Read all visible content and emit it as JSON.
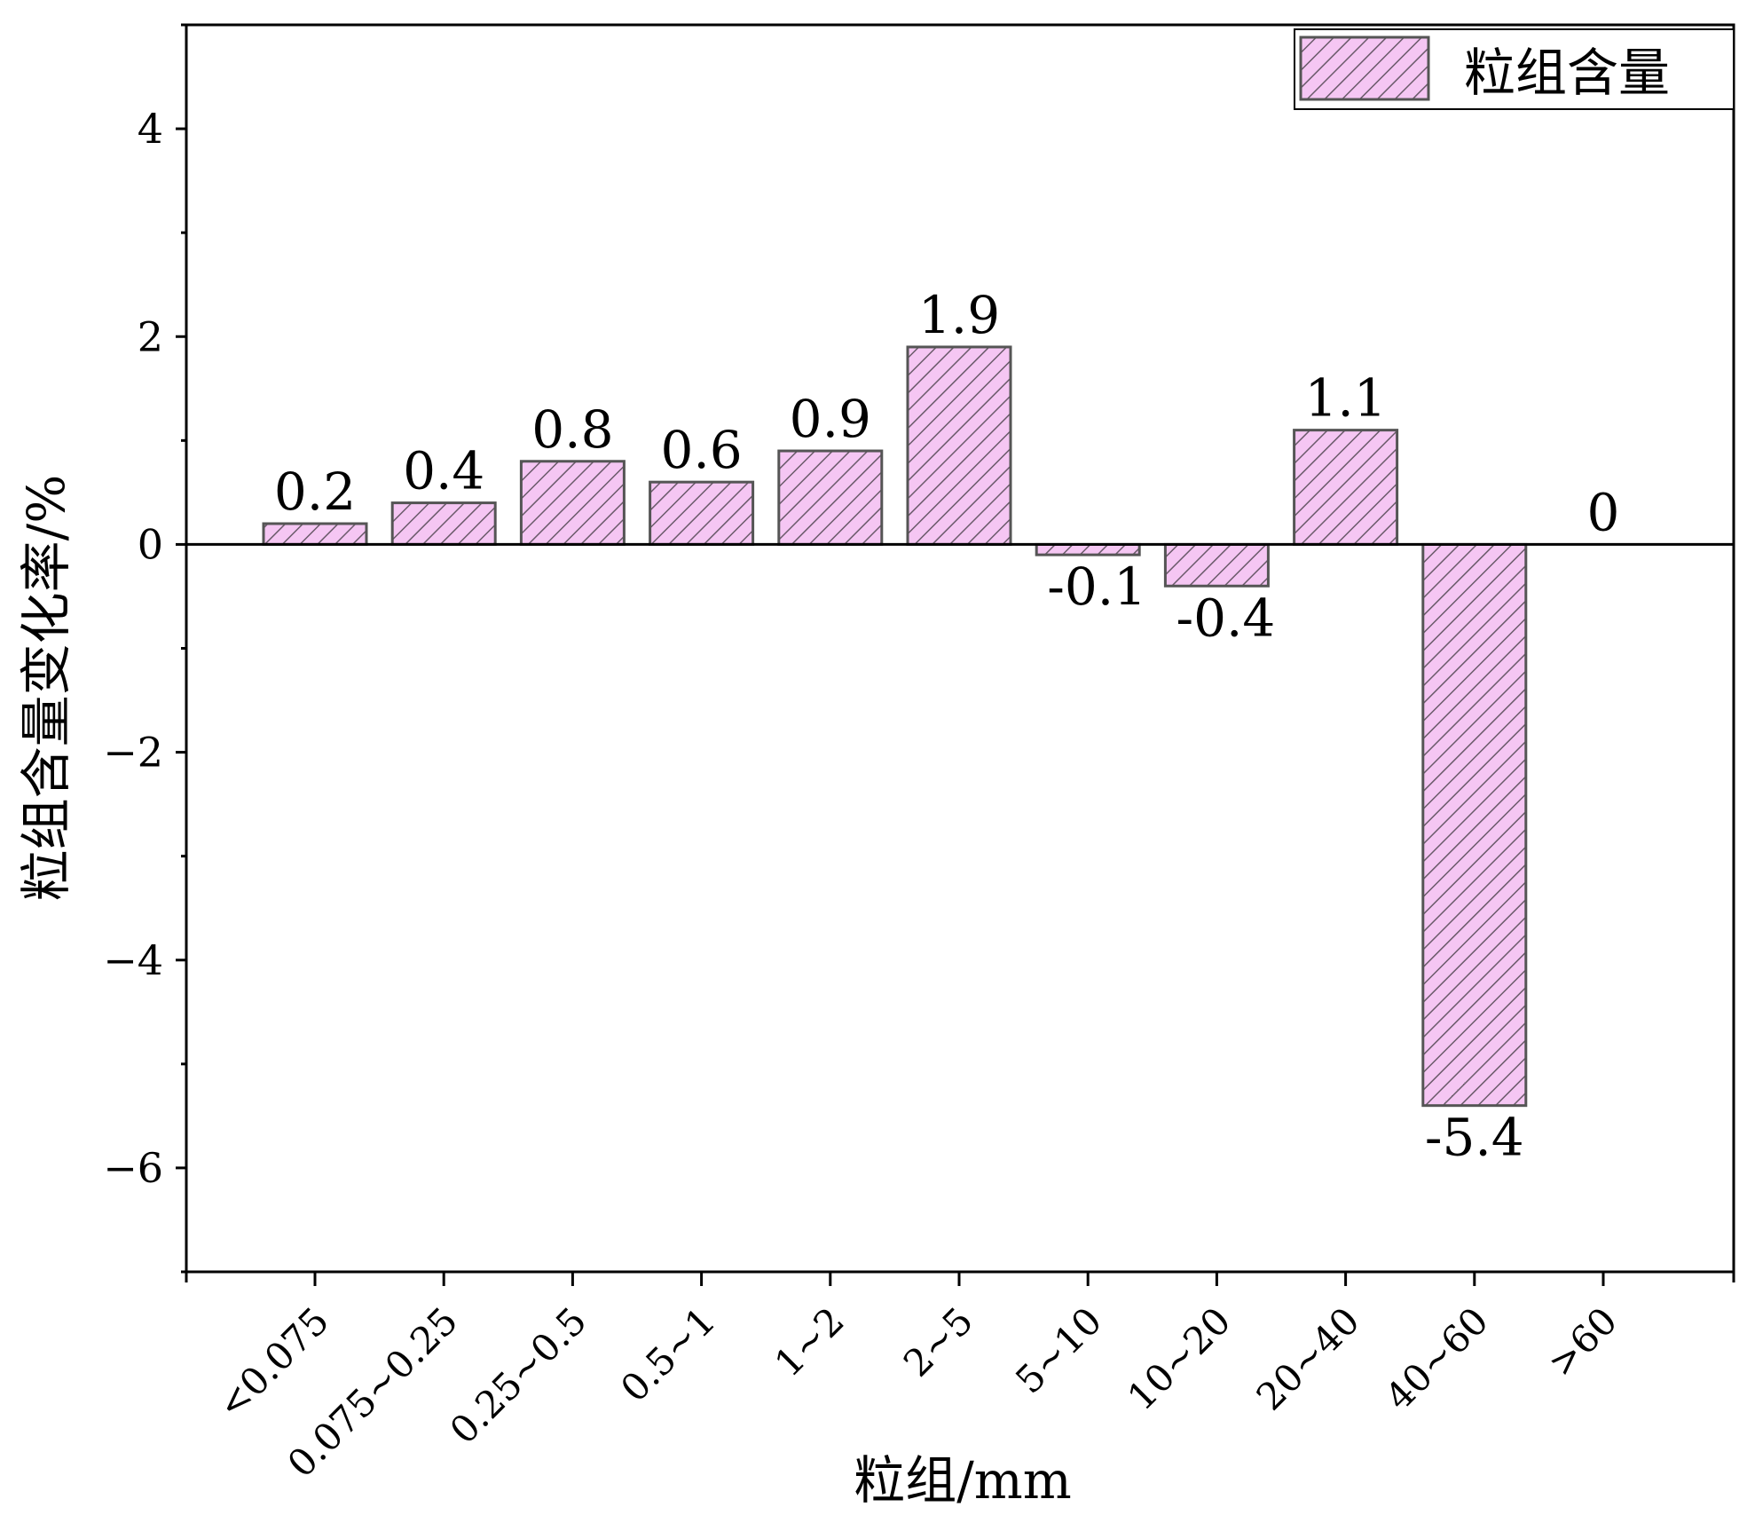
{
  "chart_data": {
    "type": "bar",
    "categories": [
      "<0.075",
      "0.075~0.25",
      "0.25~0.5",
      "0.5~1",
      "1~2",
      "2~5",
      "5~10",
      "10~20",
      "20~40",
      "40~60",
      ">60"
    ],
    "series": [
      {
        "name": "粒组含量",
        "values": [
          0.2,
          0.4,
          0.8,
          0.6,
          0.9,
          1.9,
          -0.1,
          -0.4,
          1.1,
          -5.4,
          0
        ],
        "data_labels": [
          "0.2",
          "0.4",
          "0.8",
          "0.6",
          "0.9",
          "1.9",
          "-0.1",
          "-0.4",
          "1.1",
          "-5.4",
          "0"
        ]
      }
    ],
    "xlabel": "粒组/mm",
    "ylabel": "粒组含量变化率/%",
    "ylim": [
      -7,
      5
    ],
    "yticks": [
      4,
      2,
      0,
      -2,
      -4,
      -6
    ],
    "ytick_labels": [
      "4",
      "2",
      "0",
      "−2",
      "−4",
      "−6"
    ],
    "grid": false,
    "legend_position": "top-right",
    "bar_fill": "#f5c6f3",
    "bar_stroke": "#555555",
    "hatch": "diagonal"
  }
}
